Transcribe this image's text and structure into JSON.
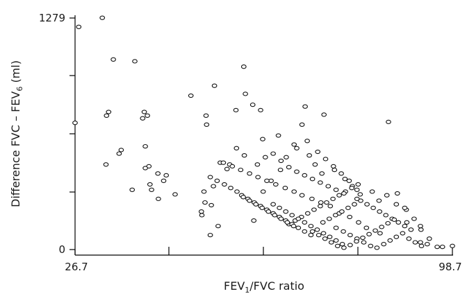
{
  "chart_data": {
    "type": "scatter",
    "title": "",
    "xlabel": {
      "main": "FEV",
      "sub": "1",
      "rest": "/FVC ratio"
    },
    "ylabel": {
      "main": "Difference FVC – FEV",
      "sub": "6",
      "rest": " (ml)"
    },
    "xlim": [
      26.7,
      98.7
    ],
    "ylim": [
      0,
      1279
    ],
    "x_tick_labels": [
      "26.7",
      "98.7"
    ],
    "y_tick_labels": [
      "0",
      "1279"
    ],
    "grid": false,
    "legend": "none",
    "point_style": "open-circle",
    "points": [
      [
        26.7,
        700
      ],
      [
        27.4,
        1230
      ],
      [
        31.9,
        1280
      ],
      [
        34.0,
        1050
      ],
      [
        33.1,
        760
      ],
      [
        32.7,
        740
      ],
      [
        35.5,
        550
      ],
      [
        35.1,
        530
      ],
      [
        32.6,
        470
      ],
      [
        38.1,
        1040
      ],
      [
        37.6,
        330
      ],
      [
        39.6,
        725
      ],
      [
        40.5,
        740
      ],
      [
        39.9,
        760
      ],
      [
        40.1,
        570
      ],
      [
        40.8,
        460
      ],
      [
        41.3,
        330
      ],
      [
        40.1,
        450
      ],
      [
        42.5,
        420
      ],
      [
        41.0,
        360
      ],
      [
        43.6,
        380
      ],
      [
        44.1,
        410
      ],
      [
        42.6,
        280
      ],
      [
        45.8,
        305
      ],
      [
        48.8,
        850
      ],
      [
        51.8,
        690
      ],
      [
        51.7,
        740
      ],
      [
        53.3,
        905
      ],
      [
        58.9,
        1010
      ],
      [
        59.2,
        860
      ],
      [
        57.4,
        770
      ],
      [
        62.1,
        770
      ],
      [
        60.6,
        800
      ],
      [
        70.6,
        790
      ],
      [
        74.2,
        745
      ],
      [
        70.0,
        690
      ],
      [
        56.2,
        470
      ],
      [
        54.4,
        480
      ],
      [
        53.8,
        380
      ],
      [
        55.7,
        445
      ],
      [
        52.5,
        400
      ],
      [
        51.3,
        320
      ],
      [
        53.1,
        350
      ],
      [
        52.7,
        245
      ],
      [
        51.5,
        260
      ],
      [
        50.9,
        190
      ],
      [
        50.8,
        210
      ],
      [
        54.0,
        130
      ],
      [
        52.5,
        80
      ],
      [
        60.8,
        160
      ],
      [
        62.6,
        320
      ],
      [
        64.1,
        380
      ],
      [
        65.9,
        440
      ],
      [
        67.0,
        510
      ],
      [
        69.0,
        560
      ],
      [
        71.4,
        520
      ],
      [
        72.5,
        470
      ],
      [
        73.8,
        420
      ],
      [
        76.2,
        440
      ],
      [
        78.2,
        390
      ],
      [
        79.6,
        350
      ],
      [
        80.5,
        330
      ],
      [
        81.1,
        305
      ],
      [
        83.4,
        320
      ],
      [
        84.7,
        270
      ],
      [
        86.2,
        300
      ],
      [
        88.0,
        250
      ],
      [
        89.9,
        220
      ],
      [
        91.4,
        170
      ],
      [
        92.7,
        110
      ],
      [
        94.3,
        60
      ],
      [
        96.8,
        15
      ],
      [
        98.7,
        20
      ],
      [
        95.8,
        15
      ],
      [
        93.9,
        30
      ],
      [
        92.6,
        40
      ],
      [
        86.5,
        705
      ],
      [
        88.2,
        310
      ],
      [
        92.6,
        130
      ],
      [
        89.6,
        230
      ],
      [
        90.0,
        150
      ],
      [
        84.9,
        90
      ],
      [
        82.3,
        120
      ],
      [
        80.8,
        150
      ],
      [
        79.1,
        180
      ],
      [
        77.1,
        200
      ],
      [
        75.4,
        240
      ],
      [
        73.6,
        260
      ],
      [
        71.9,
        280
      ],
      [
        70.0,
        300
      ],
      [
        68.5,
        320
      ],
      [
        66.8,
        340
      ],
      [
        65.0,
        360
      ],
      [
        63.3,
        380
      ],
      [
        61.6,
        400
      ],
      [
        60.0,
        420
      ],
      [
        58.3,
        440
      ],
      [
        56.7,
        460
      ],
      [
        55.0,
        480
      ],
      [
        76.5,
        120
      ],
      [
        77.9,
        100
      ],
      [
        79.2,
        80
      ],
      [
        80.5,
        60
      ],
      [
        81.8,
        40
      ],
      [
        83.1,
        20
      ],
      [
        84.3,
        10
      ],
      [
        85.6,
        30
      ],
      [
        86.8,
        50
      ],
      [
        88.0,
        70
      ],
      [
        89.2,
        90
      ],
      [
        90.4,
        60
      ],
      [
        91.6,
        40
      ],
      [
        92.8,
        20
      ],
      [
        74.0,
        150
      ],
      [
        75.2,
        170
      ],
      [
        76.4,
        190
      ],
      [
        77.6,
        210
      ],
      [
        78.8,
        230
      ],
      [
        80.0,
        250
      ],
      [
        81.2,
        270
      ],
      [
        82.4,
        250
      ],
      [
        83.6,
        230
      ],
      [
        84.8,
        210
      ],
      [
        86.0,
        190
      ],
      [
        87.2,
        170
      ],
      [
        88.4,
        150
      ],
      [
        89.6,
        130
      ],
      [
        90.8,
        110
      ],
      [
        72.0,
        100
      ],
      [
        73.2,
        80
      ],
      [
        74.4,
        60
      ],
      [
        75.6,
        40
      ],
      [
        76.8,
        20
      ],
      [
        78.0,
        10
      ],
      [
        79.2,
        25
      ],
      [
        80.4,
        45
      ],
      [
        81.6,
        65
      ],
      [
        82.8,
        85
      ],
      [
        84.0,
        105
      ],
      [
        85.2,
        125
      ],
      [
        86.4,
        145
      ],
      [
        87.6,
        165
      ],
      [
        67.5,
        140
      ],
      [
        68.7,
        160
      ],
      [
        69.9,
        180
      ],
      [
        71.1,
        200
      ],
      [
        72.3,
        220
      ],
      [
        73.5,
        240
      ],
      [
        74.7,
        260
      ],
      [
        75.9,
        280
      ],
      [
        77.1,
        300
      ],
      [
        78.3,
        320
      ],
      [
        79.5,
        340
      ],
      [
        80.7,
        360
      ],
      [
        64.5,
        250
      ],
      [
        65.7,
        230
      ],
      [
        66.9,
        210
      ],
      [
        68.1,
        190
      ],
      [
        69.3,
        170
      ],
      [
        70.5,
        150
      ],
      [
        71.7,
        130
      ],
      [
        72.9,
        110
      ],
      [
        74.1,
        90
      ],
      [
        75.3,
        70
      ],
      [
        76.5,
        50
      ],
      [
        77.7,
        30
      ],
      [
        58.5,
        300
      ],
      [
        59.7,
        280
      ],
      [
        60.9,
        260
      ],
      [
        62.1,
        240
      ],
      [
        63.3,
        220
      ],
      [
        64.5,
        200
      ],
      [
        65.7,
        180
      ],
      [
        66.9,
        160
      ],
      [
        68.1,
        140
      ],
      [
        69.3,
        120
      ],
      [
        70.5,
        100
      ],
      [
        71.7,
        80
      ],
      [
        55.2,
        360
      ],
      [
        56.4,
        340
      ],
      [
        57.6,
        320
      ],
      [
        58.8,
        290
      ],
      [
        60.0,
        270
      ],
      [
        61.2,
        250
      ],
      [
        62.4,
        230
      ],
      [
        63.6,
        210
      ],
      [
        64.8,
        190
      ],
      [
        66.0,
        170
      ],
      [
        67.2,
        150
      ],
      [
        68.4,
        130
      ],
      [
        61.5,
        470
      ],
      [
        63.0,
        510
      ],
      [
        64.5,
        530
      ],
      [
        66.0,
        490
      ],
      [
        67.5,
        455
      ],
      [
        69.0,
        430
      ],
      [
        70.5,
        410
      ],
      [
        72.0,
        390
      ],
      [
        73.5,
        370
      ],
      [
        75.0,
        350
      ],
      [
        76.5,
        330
      ],
      [
        78.0,
        310
      ],
      [
        59.0,
        520
      ],
      [
        57.5,
        560
      ],
      [
        62.5,
        610
      ],
      [
        65.5,
        630
      ],
      [
        68.5,
        580
      ],
      [
        71.0,
        600
      ],
      [
        73.0,
        540
      ],
      [
        74.5,
        500
      ],
      [
        76.0,
        460
      ],
      [
        77.5,
        420
      ],
      [
        79.0,
        380
      ],
      [
        80.5,
        280
      ]
    ]
  }
}
